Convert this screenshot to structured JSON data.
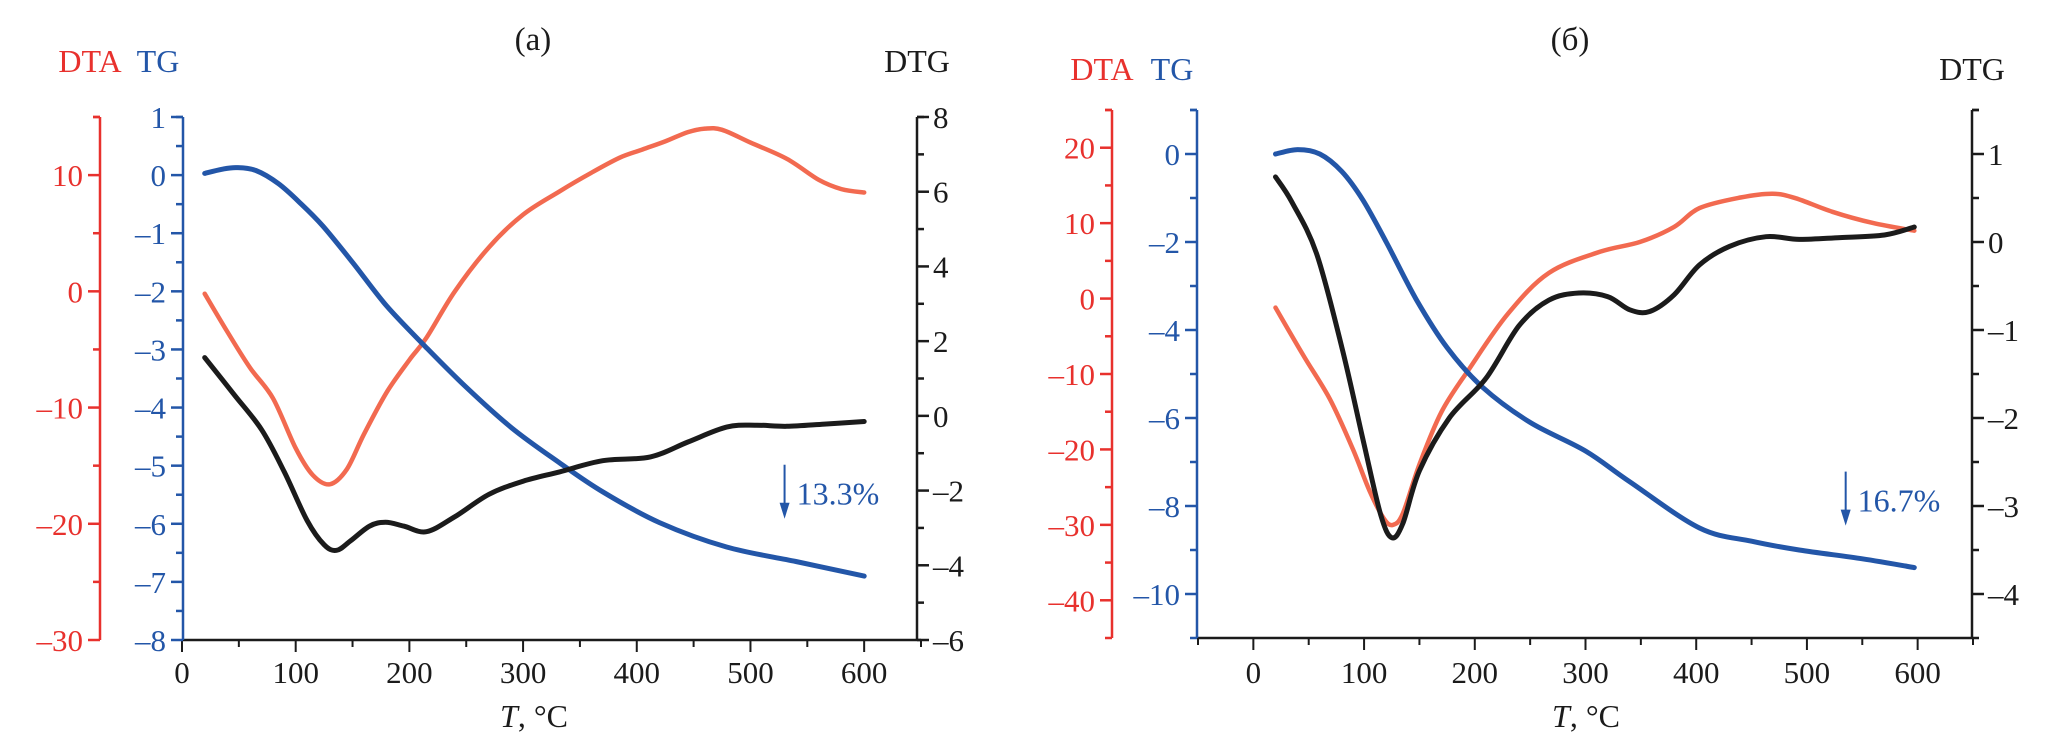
{
  "figure": {
    "colors": {
      "dta_axis": "#e8312d",
      "dta_curve": "#f26a50",
      "tg": "#2356a8",
      "dtg": "#1b1b1b",
      "x_axis": "#1b1b1b",
      "text": "#1b1b1b"
    }
  },
  "chart_data": [
    {
      "type": "line",
      "title": "(a)",
      "xlabel_italic": "T",
      "xlabel_rest": ", °C",
      "xlim": [
        0,
        650
      ],
      "x_ticks": [
        0,
        100,
        200,
        300,
        400,
        500,
        600
      ],
      "x_minor_step": 50,
      "grid": false,
      "axes": {
        "DTA": {
          "label": "DTA",
          "side": "left-outer",
          "ylim": [
            -30,
            15
          ],
          "ticks": [
            -30,
            -20,
            -10,
            0,
            10
          ],
          "minor_step": 5
        },
        "TG": {
          "label": "TG",
          "side": "left-inner",
          "ylim": [
            -8,
            1
          ],
          "ticks": [
            -8,
            -7,
            -6,
            -5,
            -4,
            -3,
            -2,
            -1,
            0,
            1
          ],
          "minor_step": 0.5
        },
        "DTG": {
          "label": "DTG",
          "side": "right",
          "ylim": [
            -6,
            8
          ],
          "ticks": [
            -6,
            -4,
            -2,
            0,
            2,
            4,
            6,
            8
          ],
          "minor_step": 1
        }
      },
      "series": [
        {
          "name": "DTA",
          "axis": "DTA",
          "x": [
            20,
            40,
            60,
            80,
            100,
            115,
            130,
            145,
            160,
            180,
            200,
            215,
            240,
            270,
            300,
            332,
            360,
            385,
            405,
            425,
            445,
            460,
            475,
            500,
            532,
            560,
            580,
            600
          ],
          "y": [
            -0.2,
            -3.5,
            -6.6,
            -9.2,
            -13.5,
            -15.8,
            -16.6,
            -15.3,
            -12.3,
            -8.7,
            -5.9,
            -4.0,
            0.0,
            3.8,
            6.6,
            8.6,
            10.2,
            11.5,
            12.2,
            12.9,
            13.7,
            14.0,
            13.9,
            12.8,
            11.4,
            9.6,
            8.8,
            8.5
          ]
        },
        {
          "name": "TG",
          "axis": "TG",
          "x": [
            20,
            35,
            48,
            65,
            85,
            105,
            124,
            150,
            180,
            215,
            250,
            290,
            332,
            370,
            420,
            479,
            540,
            600
          ],
          "y": [
            0.03,
            0.1,
            0.13,
            0.08,
            -0.15,
            -0.5,
            -0.88,
            -1.5,
            -2.25,
            -2.97,
            -3.65,
            -4.35,
            -4.95,
            -5.45,
            -5.98,
            -6.4,
            -6.65,
            -6.9
          ]
        },
        {
          "name": "DTG",
          "axis": "DTG",
          "x": [
            20,
            45,
            70,
            90,
            110,
            125,
            136,
            148,
            165,
            179,
            195,
            215,
            240,
            270,
            300,
            332,
            370,
            412,
            445,
            479,
            505,
            532,
            565,
            600
          ],
          "y": [
            1.56,
            0.6,
            -0.37,
            -1.5,
            -2.8,
            -3.45,
            -3.6,
            -3.35,
            -2.95,
            -2.85,
            -2.95,
            -3.1,
            -2.7,
            -2.1,
            -1.75,
            -1.5,
            -1.2,
            -1.1,
            -0.7,
            -0.3,
            -0.25,
            -0.28,
            -0.22,
            -0.15
          ]
        }
      ],
      "annotation": {
        "text": "13.3%",
        "x": 530,
        "y_tg": -5.5,
        "arrow": "down"
      }
    },
    {
      "type": "line",
      "title": "(б)",
      "xlabel_italic": "T",
      "xlabel_rest": ", °C",
      "xlim": [
        -50,
        650
      ],
      "x_ticks": [
        0,
        100,
        200,
        300,
        400,
        500,
        600
      ],
      "x_minor_step": 50,
      "grid": false,
      "axes": {
        "DTA": {
          "label": "DTA",
          "side": "left-outer",
          "ylim": [
            -45,
            25
          ],
          "ticks": [
            -40,
            -30,
            -20,
            -10,
            0,
            10,
            20
          ],
          "minor_step": 5
        },
        "TG": {
          "label": "TG",
          "side": "left-inner",
          "ylim": [
            -11,
            1
          ],
          "ticks": [
            -10,
            -8,
            -6,
            -4,
            -2,
            0
          ],
          "minor_step": 1
        },
        "DTG": {
          "label": "DTG",
          "side": "right",
          "ylim": [
            -4.5,
            1.5
          ],
          "ticks": [
            -4,
            -3,
            -2,
            -1,
            0,
            1
          ],
          "minor_step": 0.5
        }
      },
      "series": [
        {
          "name": "DTA",
          "axis": "DTA",
          "x": [
            20,
            45,
            69,
            90,
            105,
            118,
            126,
            135,
            150,
            170,
            195,
            230,
            267,
            313,
            349,
            380,
            403,
            440,
            469,
            490,
            523,
            560,
            597
          ],
          "y": [
            -1.2,
            -7.5,
            -13.3,
            -20.0,
            -25.5,
            -29.2,
            -30.0,
            -28.5,
            -22.0,
            -15.0,
            -9.3,
            -2.0,
            3.4,
            6.2,
            7.5,
            9.5,
            12.0,
            13.4,
            13.9,
            13.3,
            11.5,
            10.0,
            9.0
          ]
        },
        {
          "name": "TG",
          "axis": "TG",
          "x": [
            20,
            40,
            60,
            80,
            99,
            120,
            147,
            175,
            207,
            250,
            300,
            340,
            403,
            450,
            493,
            550,
            597
          ],
          "y": [
            0.0,
            0.1,
            0.0,
            -0.4,
            -1.05,
            -2.0,
            -3.3,
            -4.4,
            -5.3,
            -6.1,
            -6.75,
            -7.45,
            -8.5,
            -8.8,
            -9.0,
            -9.2,
            -9.4
          ]
        },
        {
          "name": "DTG",
          "axis": "DTG",
          "x": [
            20,
            35,
            57,
            80,
            100,
            115,
            125,
            135,
            150,
            177,
            210,
            240,
            267,
            294,
            320,
            340,
            358,
            380,
            403,
            430,
            463,
            493,
            530,
            570,
            597
          ],
          "y": [
            0.74,
            0.45,
            -0.13,
            -1.2,
            -2.3,
            -3.1,
            -3.36,
            -3.2,
            -2.6,
            -2.0,
            -1.55,
            -0.95,
            -0.66,
            -0.58,
            -0.62,
            -0.77,
            -0.79,
            -0.6,
            -0.26,
            -0.05,
            0.06,
            0.03,
            0.05,
            0.08,
            0.17
          ]
        }
      ],
      "annotation": {
        "text": "16.7%",
        "x": 535,
        "y_tg": -7.9,
        "arrow": "down"
      }
    }
  ]
}
